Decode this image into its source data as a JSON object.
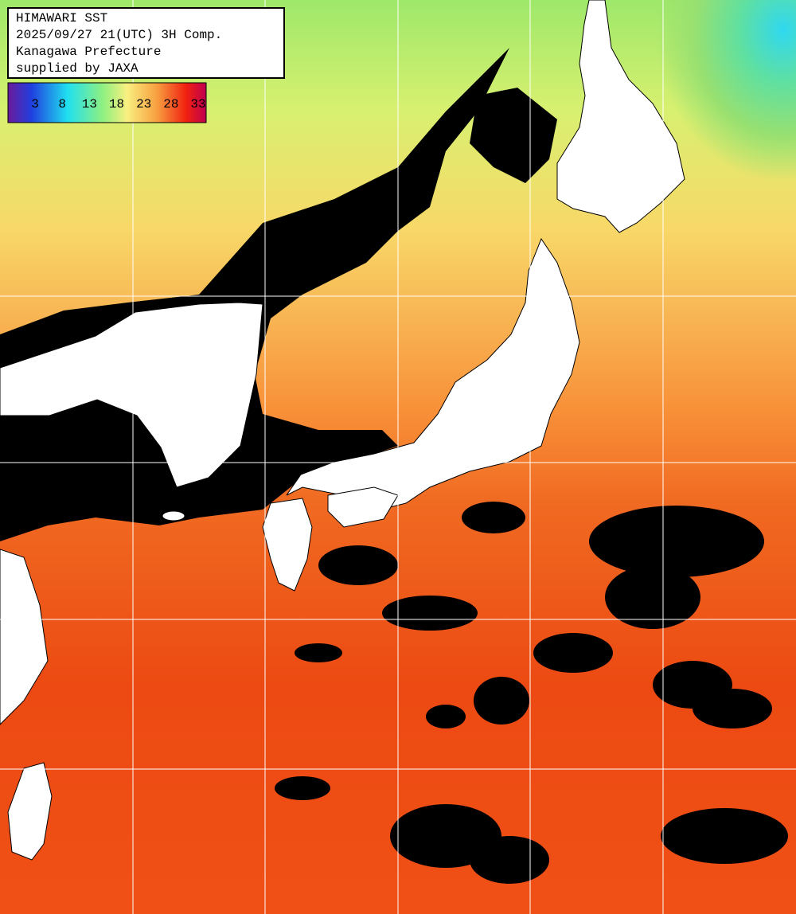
{
  "legend": {
    "lines": [
      "HIMAWARI SST",
      "2025/09/27 21(UTC) 3H Comp.",
      "Kanagawa Prefecture",
      "supplied by JAXA"
    ]
  },
  "colorbar": {
    "labels": [
      3,
      8,
      13,
      18,
      23,
      28,
      33
    ]
  }
}
